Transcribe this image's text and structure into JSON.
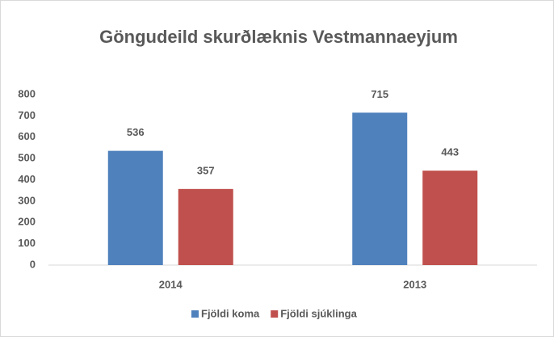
{
  "chart_data": {
    "type": "bar",
    "title": "Göngudeild skurðlæknis Vestmannaeyjum",
    "categories": [
      "2014",
      "2013"
    ],
    "series": [
      {
        "name": "Fjöldi koma",
        "color": "#4f81bd",
        "values": [
          536,
          715
        ]
      },
      {
        "name": "Fjöldi sjúklinga",
        "color": "#c0504d",
        "values": [
          357,
          443
        ]
      }
    ],
    "ylim": [
      0,
      800
    ],
    "yticks": [
      0,
      100,
      200,
      300,
      400,
      500,
      600,
      700,
      800
    ],
    "grid": false,
    "legend": "bottom"
  }
}
